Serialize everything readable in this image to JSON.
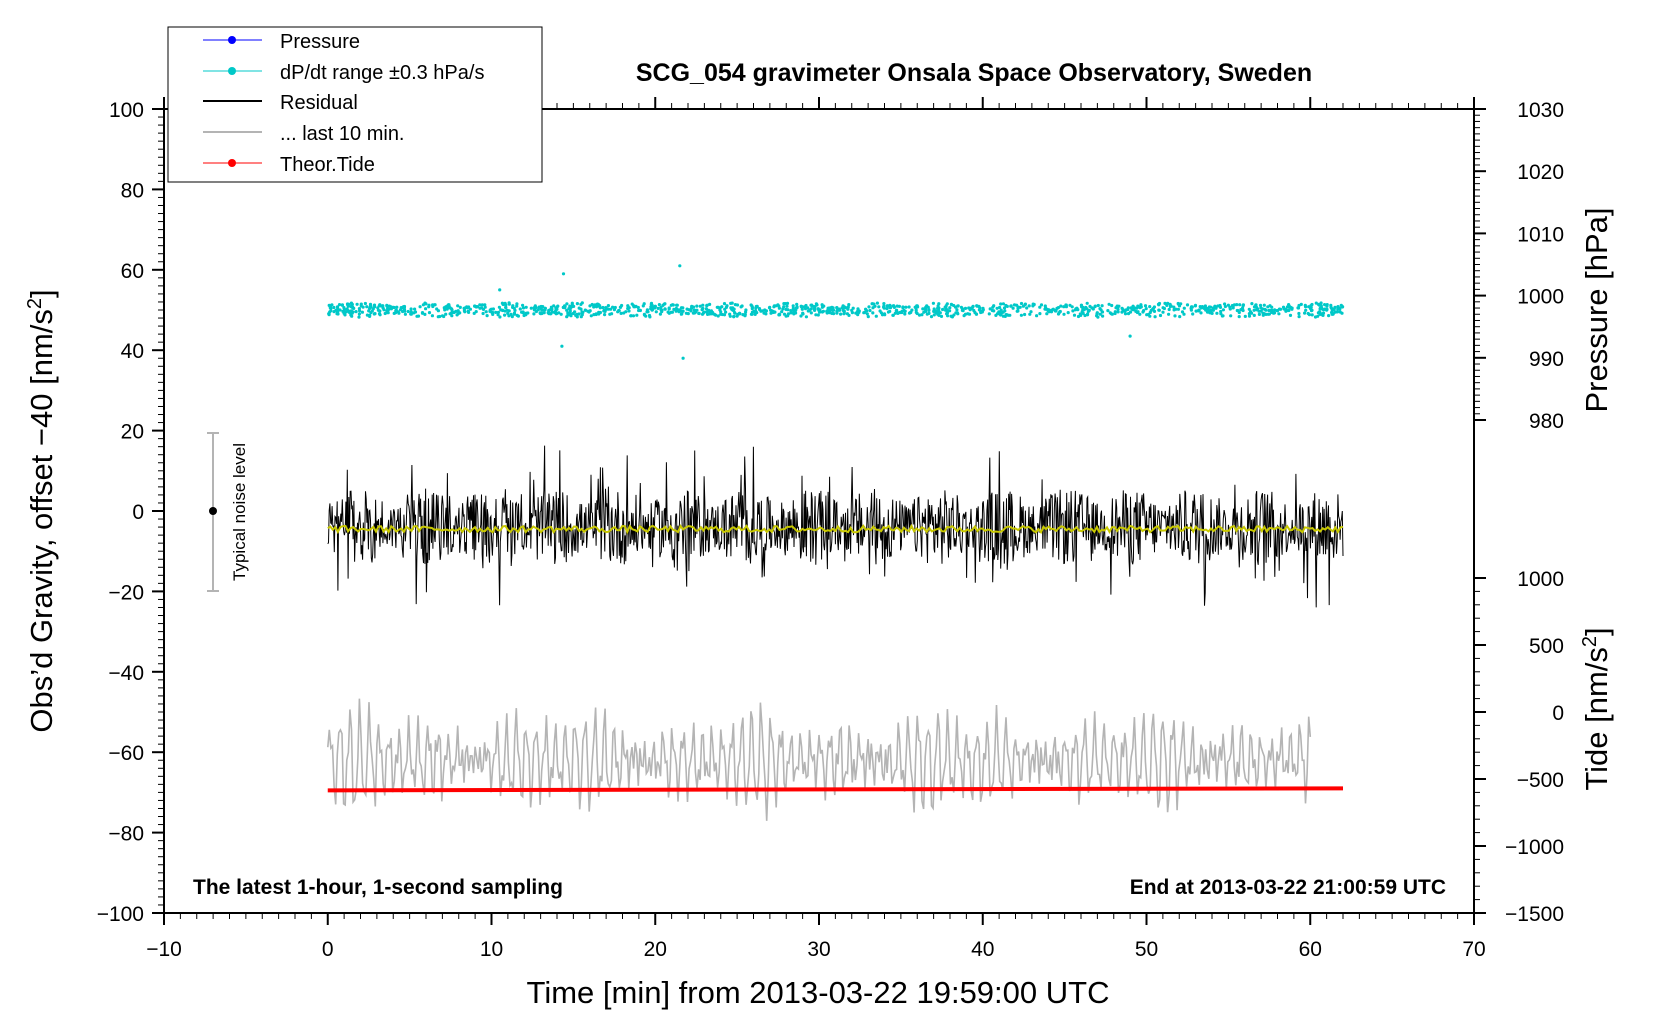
{
  "chart_data": {
    "type": "line",
    "title": "SCG_054 gravimeter Onsala Space Observatory, Sweden",
    "xlabel": "Time [min] from 2013-03-22 19:59:00 UTC",
    "ylabel_main": "Obs’d Gravity, offset −40",
    "ylabel_main_unit_base": "[nm/s",
    "ylabel_main_unit_exp": "2",
    "ylabel_main_unit_close": "]",
    "ylabel_pressure": "Pressure [hPa]",
    "ylabel_tide_base": "Tide [nm/s",
    "ylabel_tide_exp": "2",
    "ylabel_tide_close": "]",
    "xlim": [
      -10,
      70
    ],
    "ylim": [
      -100,
      100
    ],
    "x_ticks": [
      "−10",
      "0",
      "10",
      "20",
      "30",
      "40",
      "50",
      "60",
      "70"
    ],
    "y_ticks": [
      "−100",
      "−80",
      "−60",
      "−40",
      "−20",
      "0",
      "20",
      "40",
      "60",
      "80",
      "100"
    ],
    "pressure_ticks": [
      "980",
      "990",
      "1000",
      "1010",
      "1020",
      "1030"
    ],
    "tide_ticks": [
      "−1500",
      "−1000",
      "−500",
      "0",
      "500",
      "1000"
    ],
    "left_annotation": "The latest 1-hour, 1-second sampling",
    "right_annotation": "End at 2013-03-22 21:00:59 UTC",
    "noise_bar": {
      "label": "Typical noise level",
      "x": -7,
      "center": 0,
      "half_range": 20
    },
    "legend": [
      {
        "label": "Pressure",
        "color": "#0000ff",
        "marker": "dot"
      },
      {
        "label": "dP/dt range ±0.3 hPa/s",
        "color": "#00c8c8",
        "marker": "dot"
      },
      {
        "label": "Residual",
        "color": "#000000",
        "marker": "line"
      },
      {
        "label": "... last 10 min.",
        "color": "#b4b4b4",
        "marker": "line"
      },
      {
        "label": "Theor.Tide",
        "color": "#ff0000",
        "marker": "dot"
      }
    ],
    "series": [
      {
        "name": "dP/dt",
        "x_range": [
          0,
          62
        ],
        "center": 50,
        "spread": 1.5,
        "color": "#00c8c8",
        "outliers": [
          [
            14.3,
            41
          ],
          [
            14.4,
            59
          ],
          [
            21.5,
            61
          ],
          [
            21.7,
            38
          ],
          [
            10.5,
            55
          ],
          [
            49,
            43.5
          ]
        ]
      },
      {
        "name": "Residual",
        "x_range": [
          0,
          62
        ],
        "center": -4,
        "spread": 8,
        "min": -30,
        "max": 21,
        "color": "#000000"
      },
      {
        "name": "Residual smoothed",
        "x_range": [
          0,
          62
        ],
        "center": -4.5,
        "color": "#c8c800"
      },
      {
        "name": "... last 10 min.",
        "x_range": [
          0,
          60
        ],
        "center": -62,
        "amplitude": 12,
        "min": -85,
        "max": -38,
        "color": "#b4b4b4"
      },
      {
        "name": "Theor.Tide",
        "x_range": [
          0,
          62
        ],
        "start_value": -69.5,
        "end_value": -69,
        "color": "#ff0000"
      }
    ]
  }
}
